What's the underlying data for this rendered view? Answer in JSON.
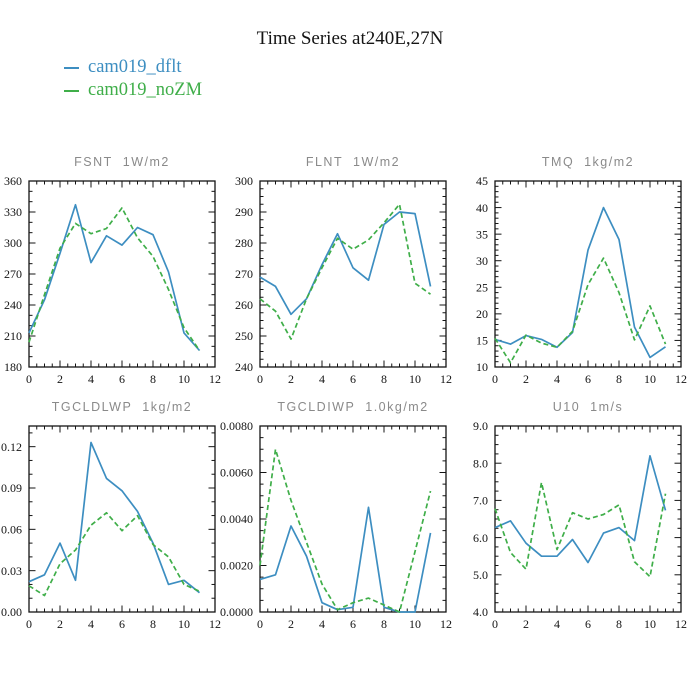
{
  "title": "Time Series at240E,27N",
  "legend": [
    {
      "label": "cam019_dflt",
      "color": "#3d8ec1",
      "dash": false
    },
    {
      "label": "cam019_noZM",
      "color": "#3fae49",
      "dash": true
    }
  ],
  "chart_data": [
    {
      "type": "line",
      "title": "FSNT  1W/m2",
      "xlim": [
        0,
        12
      ],
      "ylim": [
        180,
        360
      ],
      "xticks": {
        "values": [
          0,
          2,
          4,
          6,
          8,
          10,
          12
        ],
        "labels": [
          "0",
          "2",
          "4",
          "6",
          "8",
          "10",
          "12"
        ],
        "minor_step": 0.5
      },
      "yticks": {
        "values": [
          180,
          210,
          240,
          270,
          300,
          330,
          360
        ],
        "labels": [
          "180",
          "210",
          "240",
          "270",
          "300",
          "330",
          "360"
        ],
        "minor_step": 10
      },
      "x": [
        0,
        1,
        2,
        3,
        4,
        5,
        6,
        7,
        8,
        9,
        10,
        11
      ],
      "series": [
        {
          "name": "cam019_dflt",
          "values": [
            213,
            245,
            290,
            337,
            281,
            307,
            298,
            315,
            308,
            272,
            213,
            196
          ]
        },
        {
          "name": "cam019_noZM",
          "values": [
            204,
            250,
            295,
            319,
            309,
            314,
            334,
            305,
            287,
            255,
            218,
            196
          ]
        }
      ]
    },
    {
      "type": "line",
      "title": "FLNT  1W/m2",
      "xlim": [
        0,
        12
      ],
      "ylim": [
        240,
        300
      ],
      "xticks": {
        "values": [
          0,
          2,
          4,
          6,
          8,
          10,
          12
        ],
        "labels": [
          "0",
          "2",
          "4",
          "6",
          "8",
          "10",
          "12"
        ],
        "minor_step": 0.5
      },
      "yticks": {
        "values": [
          240,
          250,
          260,
          270,
          280,
          290,
          300
        ],
        "labels": [
          "240",
          "250",
          "260",
          "270",
          "280",
          "290",
          "300"
        ],
        "minor_step": 2.5
      },
      "x": [
        0,
        1,
        2,
        3,
        4,
        5,
        6,
        7,
        8,
        9,
        10,
        11
      ],
      "series": [
        {
          "name": "cam019_dflt",
          "values": [
            269,
            266,
            257,
            262,
            273,
            283,
            272,
            268,
            286,
            290,
            289.5,
            266
          ]
        },
        {
          "name": "cam019_noZM",
          "values": [
            262,
            258,
            249,
            262,
            272,
            281.5,
            278,
            281,
            286.5,
            292.5,
            267,
            263.5
          ]
        }
      ]
    },
    {
      "type": "line",
      "title": "TMQ  1kg/m2",
      "xlim": [
        0,
        12
      ],
      "ylim": [
        10,
        45
      ],
      "xticks": {
        "values": [
          0,
          2,
          4,
          6,
          8,
          10,
          12
        ],
        "labels": [
          "0",
          "2",
          "4",
          "6",
          "8",
          "10",
          "12"
        ],
        "minor_step": 0.5
      },
      "yticks": {
        "values": [
          10,
          15,
          20,
          25,
          30,
          35,
          40,
          45
        ],
        "labels": [
          "10",
          "15",
          "20",
          "25",
          "30",
          "35",
          "40",
          "45"
        ],
        "minor_step": 1
      },
      "x": [
        0,
        1,
        2,
        3,
        4,
        5,
        6,
        7,
        8,
        9,
        10,
        11
      ],
      "series": [
        {
          "name": "cam019_dflt",
          "values": [
            15.2,
            14.3,
            15.9,
            15.2,
            13.7,
            16.5,
            32,
            40,
            34,
            17.5,
            11.8,
            13.8
          ]
        },
        {
          "name": "cam019_noZM",
          "values": [
            15.4,
            10.8,
            16,
            14.5,
            13.7,
            16.7,
            25.5,
            30.5,
            24,
            15.1,
            21.5,
            14.3
          ]
        }
      ]
    },
    {
      "type": "line",
      "title": "TGCLDLWP  1kg/m2",
      "xlim": [
        0,
        12
      ],
      "ylim": [
        0,
        0.135
      ],
      "xticks": {
        "values": [
          0,
          2,
          4,
          6,
          8,
          10,
          12
        ],
        "labels": [
          "0",
          "2",
          "4",
          "6",
          "8",
          "10",
          "12"
        ],
        "minor_step": 0.5
      },
      "yticks": {
        "values": [
          0,
          0.03,
          0.06,
          0.09,
          0.12
        ],
        "labels": [
          "0.00",
          "0.03",
          "0.06",
          "0.09",
          "0.12"
        ],
        "minor_step": 0.01
      },
      "x": [
        0,
        1,
        2,
        3,
        4,
        5,
        6,
        7,
        8,
        9,
        10,
        11
      ],
      "series": [
        {
          "name": "cam019_dflt",
          "values": [
            0.022,
            0.027,
            0.05,
            0.023,
            0.123,
            0.097,
            0.088,
            0.073,
            0.05,
            0.02,
            0.023,
            0.014
          ]
        },
        {
          "name": "cam019_noZM",
          "values": [
            0.019,
            0.012,
            0.035,
            0.045,
            0.063,
            0.072,
            0.059,
            0.07,
            0.049,
            0.04,
            0.02,
            0.015
          ]
        }
      ]
    },
    {
      "type": "line",
      "title": "TGCLDIWP  1.0kg/m2",
      "xlim": [
        0,
        12
      ],
      "ylim": [
        0,
        0.008
      ],
      "xticks": {
        "values": [
          0,
          2,
          4,
          6,
          8,
          10,
          12
        ],
        "labels": [
          "0",
          "2",
          "4",
          "6",
          "8",
          "10",
          "12"
        ],
        "minor_step": 0.5
      },
      "yticks": {
        "values": [
          0,
          0.002,
          0.004,
          0.006,
          0.008
        ],
        "labels": [
          "0.0000",
          "0.0020",
          "0.0040",
          "0.0060",
          "0.0080"
        ],
        "minor_step": 0.0005
      },
      "x": [
        0,
        1,
        2,
        3,
        4,
        5,
        6,
        7,
        8,
        9,
        10,
        11
      ],
      "series": [
        {
          "name": "cam019_dflt",
          "values": [
            0.0014,
            0.0016,
            0.0037,
            0.0024,
            0.0004,
            0.0001,
            0.0002,
            0.0045,
            0.0002,
            0.0,
            0.0,
            0.0034
          ]
        },
        {
          "name": "cam019_noZM",
          "values": [
            0.002,
            0.007,
            0.0048,
            0.003,
            0.0012,
            0.0001,
            0.0004,
            0.0006,
            0.0003,
            0.0,
            0.0026,
            0.0052
          ]
        }
      ]
    },
    {
      "type": "line",
      "title": "U10  1m/s",
      "xlim": [
        0,
        12
      ],
      "ylim": [
        4,
        9
      ],
      "xticks": {
        "values": [
          0,
          2,
          4,
          6,
          8,
          10,
          12
        ],
        "labels": [
          "0",
          "2",
          "4",
          "6",
          "8",
          "10",
          "12"
        ],
        "minor_step": 0.5
      },
      "yticks": {
        "values": [
          4,
          5,
          6,
          7,
          8,
          9
        ],
        "labels": [
          "4.0",
          "5.0",
          "6.0",
          "7.0",
          "8.0",
          "9.0"
        ],
        "minor_step": 0.25
      },
      "x": [
        0,
        1,
        2,
        3,
        4,
        5,
        6,
        7,
        8,
        9,
        10,
        11
      ],
      "series": [
        {
          "name": "cam019_dflt",
          "values": [
            6.27,
            6.45,
            5.85,
            5.5,
            5.5,
            5.95,
            5.33,
            6.12,
            6.27,
            5.92,
            8.2,
            6.73
          ]
        },
        {
          "name": "cam019_noZM",
          "values": [
            6.78,
            5.6,
            5.15,
            7.48,
            5.68,
            6.67,
            6.5,
            6.62,
            6.88,
            5.35,
            4.95,
            7.18
          ]
        }
      ]
    }
  ]
}
